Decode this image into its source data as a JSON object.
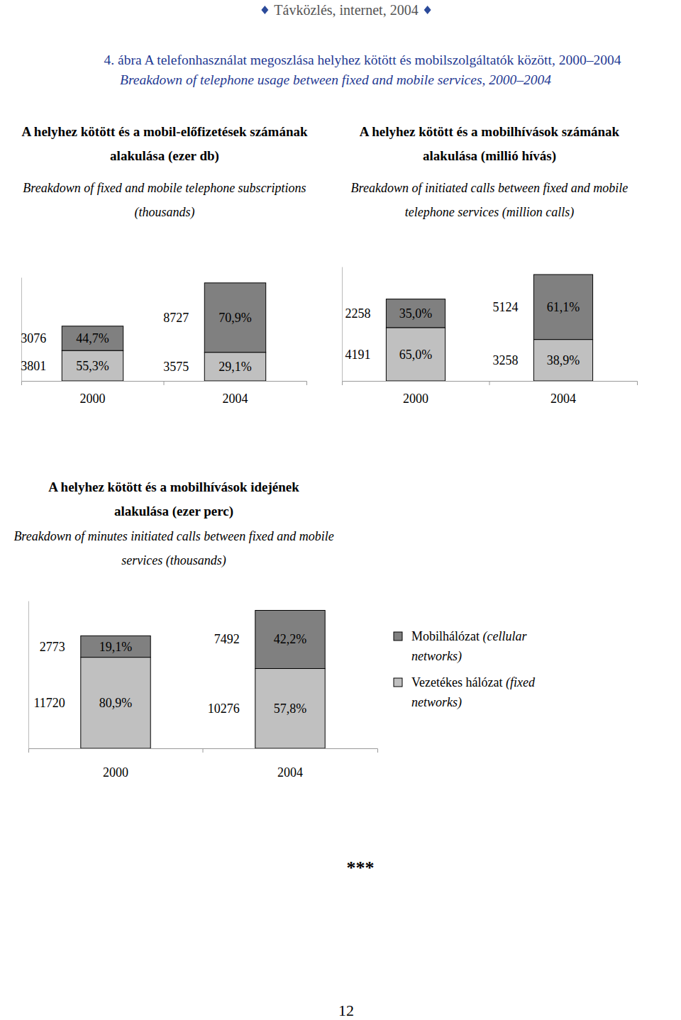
{
  "page": {
    "header": "Távközlés, internet, 2004",
    "figure_title": "4. ábra A telefonhasználat megoszlása helyhez kötött és mobilszolgáltatók között, 2000–2004",
    "figure_subtitle": "Breakdown of telephone usage between fixed and mobile services, 2000–2004",
    "separator": "***",
    "page_number": "12"
  },
  "chart_data": [
    {
      "type": "bar",
      "stacked": true,
      "data_labels": true,
      "tick_labels": "x",
      "title": "A helyhez kötött és a mobil-előfizetések számának alakulása (ezer db)",
      "subtitle": "Breakdown of fixed and mobile telephone subscriptions (thousands)",
      "categories": [
        "2000",
        "2004"
      ],
      "ylim": [
        0,
        13000
      ],
      "series": [
        {
          "color": "#808080",
          "values": [
            3076,
            8727
          ],
          "percent_labels": [
            "44,7%",
            "70,9%"
          ]
        },
        {
          "color": "#c0c0c0",
          "values": [
            3801,
            3575
          ],
          "percent_labels": [
            "55,3%",
            "29,1%"
          ]
        }
      ]
    },
    {
      "type": "bar",
      "stacked": true,
      "data_labels": true,
      "tick_labels": "x",
      "title": "A helyhez kötött és a mobilhívások számának alakulása (millió hívás)",
      "subtitle": "Breakdown of initiated calls between fixed and mobile telephone services (million calls)",
      "categories": [
        "2000",
        "2004"
      ],
      "ylim": [
        0,
        9000
      ],
      "series": [
        {
          "color": "#808080",
          "values": [
            2258,
            5124
          ],
          "percent_labels": [
            "35,0%",
            "61,1%"
          ]
        },
        {
          "color": "#c0c0c0",
          "values": [
            4191,
            3258
          ],
          "percent_labels": [
            "65,0%",
            "38,9%"
          ]
        }
      ]
    },
    {
      "type": "bar",
      "stacked": true,
      "data_labels": true,
      "tick_labels": "x",
      "legend": "right",
      "title": "A helyhez kötött és a mobilhívások idejének alakulása (ezer perc)",
      "subtitle": "Breakdown of minutes initiated calls between fixed and mobile services (thousands)",
      "categories": [
        "2000",
        "2004"
      ],
      "ylim": [
        0,
        19000
      ],
      "series": [
        {
          "name": "Mobilhálózat (cellular networks)",
          "color": "#808080",
          "values": [
            2773,
            7492
          ],
          "percent_labels": [
            "19,1%",
            "42,2%"
          ]
        },
        {
          "name": "Vezetékes hálózat (fixed networks)",
          "color": "#c0c0c0",
          "values": [
            11720,
            10276
          ],
          "percent_labels": [
            "80,9%",
            "57,8%"
          ]
        }
      ]
    }
  ]
}
